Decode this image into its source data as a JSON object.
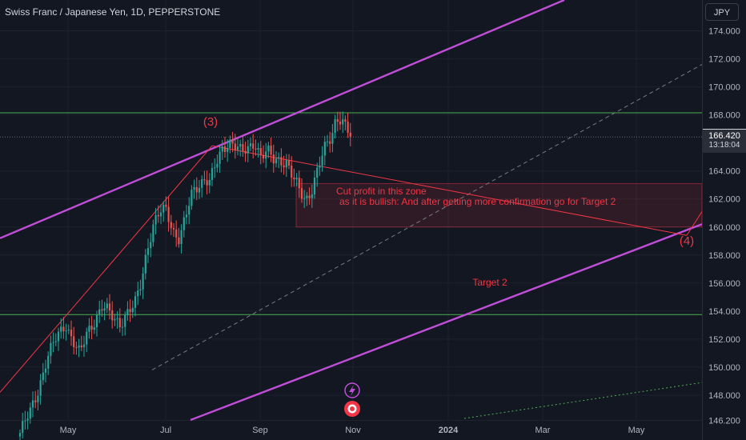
{
  "header": {
    "symbol_title": "Swiss Franc / Japanese Yen, 1D, PEPPERSTONE",
    "currency_button": "JPY"
  },
  "price_tag": {
    "price": "166.420",
    "countdown": "13:18:04"
  },
  "colors": {
    "background": "#131722",
    "candle_up": "#26a69a",
    "candle_down": "#ef5350",
    "channel": "#c04ed8",
    "horizontal_lines": "#4caf50",
    "trend_line": "#f23645",
    "zone_fill": "rgba(242,54,69,0.13)",
    "annotation_text": "#f23645"
  },
  "chart_data": {
    "type": "candlestick",
    "y_axis": {
      "ticks": [
        "174.000",
        "172.000",
        "170.000",
        "168.000",
        "164.000",
        "162.000",
        "160.000",
        "158.000",
        "156.000",
        "154.000",
        "152.000",
        "150.000",
        "148.000",
        "146.200"
      ],
      "range": [
        144.8,
        176.2
      ]
    },
    "x_axis": {
      "ticks": [
        "May",
        "Jul",
        "Sep",
        "Nov",
        "2024",
        "Mar",
        "May"
      ]
    },
    "horizontal_levels": [
      168.15,
      153.75
    ],
    "current_price": 166.42,
    "annotations": [
      {
        "text": "(3)"
      },
      {
        "text": "(4)"
      },
      {
        "text": "Cut profit in this zone"
      },
      {
        "text": "as it is bullish: And after getting more confirmation go for Target 2"
      },
      {
        "text": "Target 2"
      }
    ],
    "price_path": [
      [
        25,
        145.3
      ],
      [
        38,
        146.8
      ],
      [
        48,
        148.5
      ],
      [
        58,
        150.5
      ],
      [
        70,
        152.0
      ],
      [
        82,
        153.2
      ],
      [
        90,
        152.0
      ],
      [
        100,
        150.8
      ],
      [
        108,
        152.4
      ],
      [
        118,
        153.4
      ],
      [
        128,
        154.3
      ],
      [
        140,
        153.6
      ],
      [
        150,
        153.2
      ],
      [
        160,
        153.9
      ],
      [
        168,
        154.3
      ],
      [
        176,
        156.0
      ],
      [
        184,
        158.6
      ],
      [
        192,
        160.2
      ],
      [
        200,
        161.0
      ],
      [
        208,
        161.2
      ],
      [
        216,
        159.8
      ],
      [
        224,
        159.2
      ],
      [
        232,
        160.6
      ],
      [
        240,
        162.4
      ],
      [
        248,
        163.1
      ],
      [
        256,
        163.5
      ],
      [
        262,
        163.2
      ],
      [
        270,
        164.4
      ],
      [
        278,
        165.6
      ],
      [
        286,
        166.2
      ],
      [
        294,
        165.8
      ],
      [
        302,
        165.2
      ],
      [
        310,
        165.6
      ],
      [
        318,
        166.2
      ],
      [
        326,
        165.0
      ],
      [
        334,
        165.3
      ],
      [
        342,
        164.8
      ],
      [
        350,
        164.9
      ],
      [
        358,
        164.6
      ],
      [
        366,
        163.4
      ],
      [
        374,
        162.6
      ],
      [
        382,
        162.0
      ],
      [
        390,
        162.8
      ],
      [
        398,
        164.2
      ],
      [
        406,
        165.6
      ],
      [
        414,
        166.6
      ],
      [
        420,
        167.9
      ],
      [
        426,
        167.7
      ],
      [
        432,
        167.0
      ],
      [
        438,
        166.4
      ]
    ]
  }
}
